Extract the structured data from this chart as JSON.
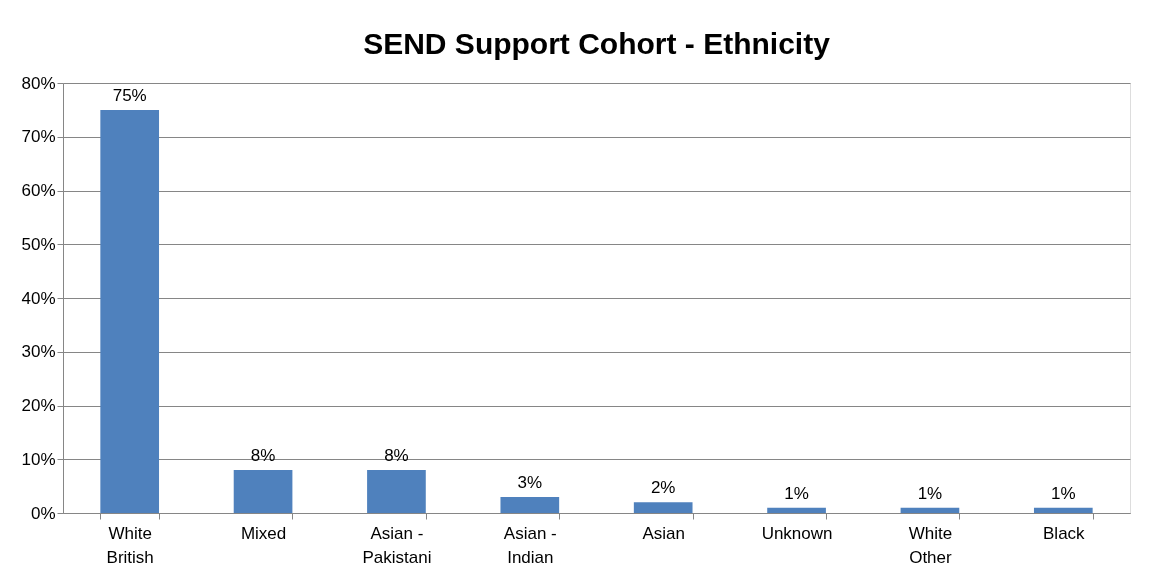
{
  "chart_data": {
    "type": "bar",
    "title": "SEND Support Cohort - Ethnicity",
    "categories": [
      "White British",
      "Mixed",
      "Asian - Pakistani",
      "Asian - Indian",
      "Asian",
      "Unknown",
      "White Other",
      "Black"
    ],
    "values": [
      75,
      8,
      8,
      3,
      2,
      1,
      1,
      1
    ],
    "color": "#4f81bd",
    "ylim": [
      0,
      80
    ],
    "yticks": [
      {
        "value": 0,
        "label": "0%"
      },
      {
        "value": 10,
        "label": "10%"
      },
      {
        "value": 20,
        "label": "20%"
      },
      {
        "value": 30,
        "label": "30%"
      },
      {
        "value": 40,
        "label": "40%"
      },
      {
        "value": 50,
        "label": "50%"
      },
      {
        "value": 60,
        "label": "60%"
      },
      {
        "value": 70,
        "label": "70%"
      },
      {
        "value": 80,
        "label": "80%"
      }
    ],
    "value_labels": [
      "75%",
      "8%",
      "8%",
      "3%",
      "2%",
      "1%",
      "1%",
      "1%"
    ],
    "grid": "y"
  }
}
